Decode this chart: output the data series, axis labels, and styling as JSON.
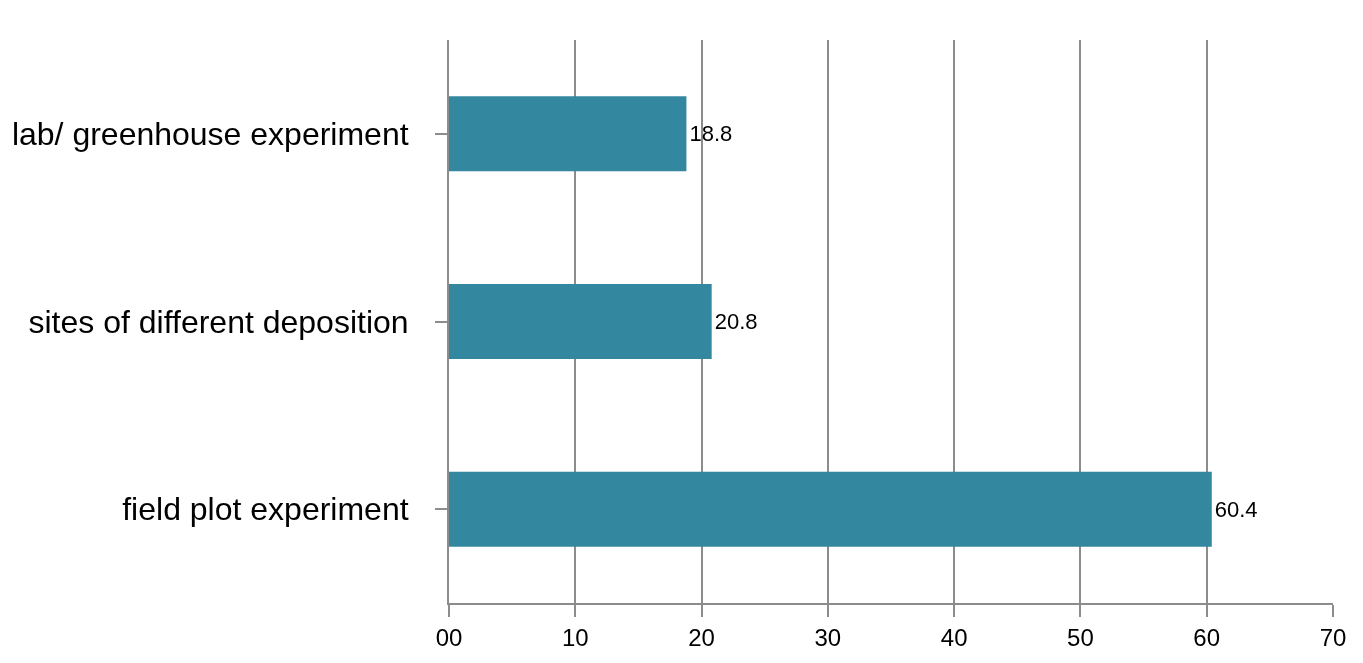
{
  "chart_data": {
    "type": "bar",
    "orientation": "horizontal",
    "categories": [
      "lab/ greenhouse experiment",
      "sites of different deposition",
      "field plot experiment"
    ],
    "values": [
      18.8,
      20.8,
      60.4
    ],
    "color": "#33879e",
    "xlim": [
      0,
      70
    ],
    "xticks": [
      {
        "value": 0,
        "label": "00"
      },
      10,
      20,
      30,
      40,
      50,
      60,
      70
    ],
    "grid": "x",
    "data_labels": true,
    "legend": false
  }
}
